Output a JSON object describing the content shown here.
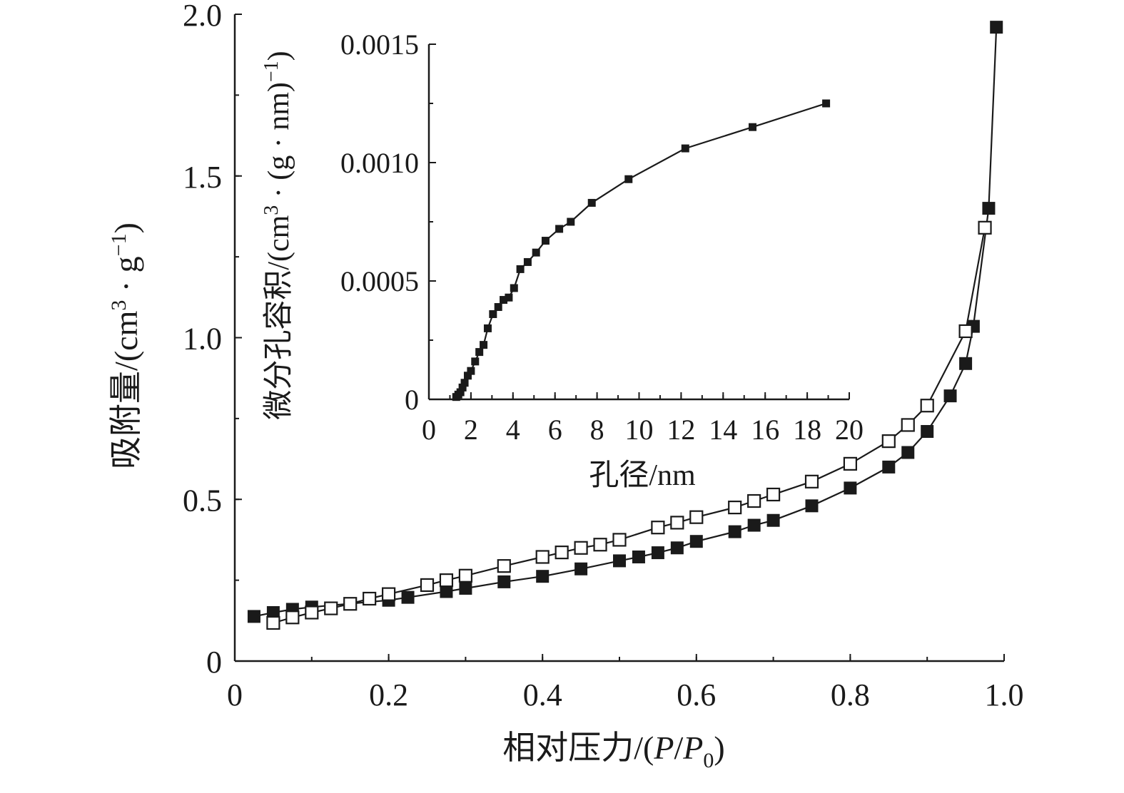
{
  "chart_data": [
    {
      "type": "scatter",
      "title": "",
      "xlabel": "相对压力/(P/P0)",
      "ylabel": "吸附量/(cm3 · g−1)",
      "xlabel_parts": {
        "main": "相对压力/(",
        "p1": "P",
        "slash": "/",
        "p2": "P",
        "sub": "0",
        "end": ")"
      },
      "ylabel_parts": {
        "main": "吸附量/(cm",
        "sup1": "3",
        "mid": " · g",
        "sup2": "−1",
        "end": ")"
      },
      "xlim": [
        0,
        1.0
      ],
      "ylim": [
        0,
        2.0
      ],
      "xticks": [
        "0",
        "0.2",
        "0.4",
        "0.6",
        "0.8",
        "1.0"
      ],
      "yticks": [
        "0",
        "0.5",
        "1.0",
        "1.5",
        "2.0"
      ],
      "grid": false,
      "series": [
        {
          "marker": "filled-square",
          "x": [
            0.025,
            0.05,
            0.075,
            0.1,
            0.2,
            0.225,
            0.275,
            0.3,
            0.35,
            0.4,
            0.45,
            0.5,
            0.525,
            0.55,
            0.575,
            0.6,
            0.65,
            0.675,
            0.7,
            0.75,
            0.8,
            0.85,
            0.875,
            0.9,
            0.93,
            0.95,
            0.96,
            0.98,
            0.99
          ],
          "y": [
            0.138,
            0.15,
            0.16,
            0.167,
            0.188,
            0.197,
            0.215,
            0.225,
            0.245,
            0.262,
            0.285,
            0.31,
            0.322,
            0.335,
            0.35,
            0.37,
            0.4,
            0.42,
            0.435,
            0.48,
            0.535,
            0.6,
            0.645,
            0.71,
            0.82,
            0.92,
            1.035,
            1.4,
            1.96
          ]
        },
        {
          "marker": "open-square",
          "x": [
            0.05,
            0.075,
            0.1,
            0.125,
            0.15,
            0.175,
            0.2,
            0.25,
            0.275,
            0.3,
            0.35,
            0.4,
            0.425,
            0.45,
            0.475,
            0.5,
            0.55,
            0.575,
            0.6,
            0.65,
            0.675,
            0.7,
            0.75,
            0.8,
            0.85,
            0.875,
            0.9,
            0.95,
            0.975
          ],
          "y": [
            0.118,
            0.135,
            0.15,
            0.163,
            0.177,
            0.193,
            0.207,
            0.235,
            0.25,
            0.264,
            0.294,
            0.322,
            0.336,
            0.35,
            0.36,
            0.375,
            0.413,
            0.428,
            0.445,
            0.475,
            0.495,
            0.515,
            0.555,
            0.61,
            0.68,
            0.73,
            0.79,
            1.02,
            1.34
          ]
        }
      ]
    },
    {
      "type": "line",
      "title": "",
      "xlabel": "孔径/nm",
      "ylabel": "微分孔容积/(cm3 · (g · nm)−1)",
      "ylabel_parts": {
        "main": "微分孔容积/(cm",
        "sup1": "3",
        "mid": " · (g · nm)",
        "sup2": "−1",
        "end": ")"
      },
      "xlim": [
        0,
        20
      ],
      "ylim": [
        0,
        0.0015
      ],
      "xticks": [
        "0",
        "2",
        "4",
        "6",
        "8",
        "10",
        "12",
        "14",
        "16",
        "18",
        "20"
      ],
      "yticks": [
        "0",
        "0.0005",
        "0.0010",
        "0.0015"
      ],
      "grid": false,
      "series": [
        {
          "marker": "filled-square",
          "x": [
            1.3,
            1.4,
            1.5,
            1.6,
            1.7,
            1.85,
            2.0,
            2.2,
            2.4,
            2.6,
            2.8,
            3.05,
            3.3,
            3.55,
            3.8,
            4.05,
            4.35,
            4.7,
            5.1,
            5.55,
            6.2,
            6.75,
            7.75,
            9.5,
            12.2,
            15.4,
            18.9
          ],
          "y": [
            1e-05,
            2e-05,
            3e-05,
            5e-05,
            7e-05,
            0.0001,
            0.00012,
            0.00016,
            0.0002,
            0.00023,
            0.0003,
            0.00036,
            0.00039,
            0.00042,
            0.00043,
            0.00047,
            0.00055,
            0.00058,
            0.00062,
            0.00067,
            0.00072,
            0.00075,
            0.00083,
            0.00093,
            0.00106,
            0.00115,
            0.00125
          ]
        }
      ]
    }
  ]
}
